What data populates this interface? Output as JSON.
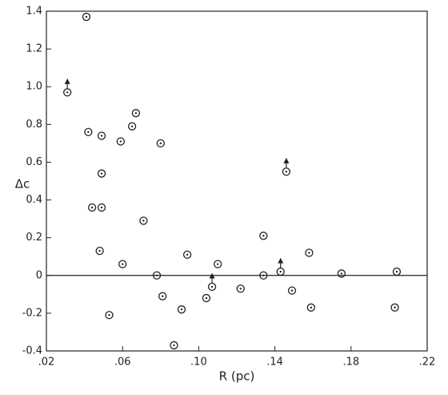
{
  "chart_data": {
    "type": "scatter",
    "x_label": "R (pc)",
    "y_label": "Δc",
    "xlim": [
      0.02,
      0.22
    ],
    "xticks": [
      {
        "value": 0.02,
        "label": ".02"
      },
      {
        "value": 0.06,
        "label": ".06"
      },
      {
        "value": 0.1,
        "label": ".10"
      },
      {
        "value": 0.14,
        "label": ".14"
      },
      {
        "value": 0.18,
        "label": ".18"
      },
      {
        "value": 0.22,
        "label": ".22"
      }
    ],
    "ylim": [
      -0.4,
      1.4
    ],
    "yticks": [
      -0.4,
      -0.2,
      0,
      0.2,
      0.4,
      0.6,
      0.8,
      {
        "value": 1.0,
        "label": "1.0"
      },
      1.2,
      1.4
    ],
    "zero_line": true,
    "color": "#222",
    "x": [
      0.041,
      0.031,
      0.042,
      0.049,
      0.044,
      0.049,
      0.049,
      0.048,
      0.059,
      0.067,
      0.065,
      0.08,
      0.071,
      0.06,
      0.053,
      0.078,
      0.081,
      0.087,
      0.091,
      0.094,
      0.104,
      0.107,
      0.11,
      0.122,
      0.134,
      0.134,
      0.143,
      0.146,
      0.149,
      0.158,
      0.159,
      0.175,
      0.204,
      0.203
    ],
    "values": [
      1.37,
      0.97,
      0.76,
      0.74,
      0.36,
      0.36,
      0.54,
      0.13,
      0.71,
      0.86,
      0.79,
      0.7,
      0.29,
      0.06,
      -0.21,
      0.0,
      -0.11,
      -0.37,
      -0.18,
      0.11,
      -0.12,
      -0.06,
      0.06,
      -0.07,
      0.21,
      0.0,
      0.02,
      0.55,
      -0.08,
      0.12,
      -0.17,
      0.01,
      0.02,
      -0.17
    ],
    "lower_limit": [
      false,
      true,
      false,
      false,
      false,
      false,
      false,
      false,
      false,
      false,
      false,
      false,
      false,
      false,
      false,
      false,
      false,
      false,
      false,
      false,
      false,
      true,
      false,
      false,
      false,
      false,
      true,
      true,
      false,
      false,
      false,
      false,
      false,
      false
    ]
  }
}
